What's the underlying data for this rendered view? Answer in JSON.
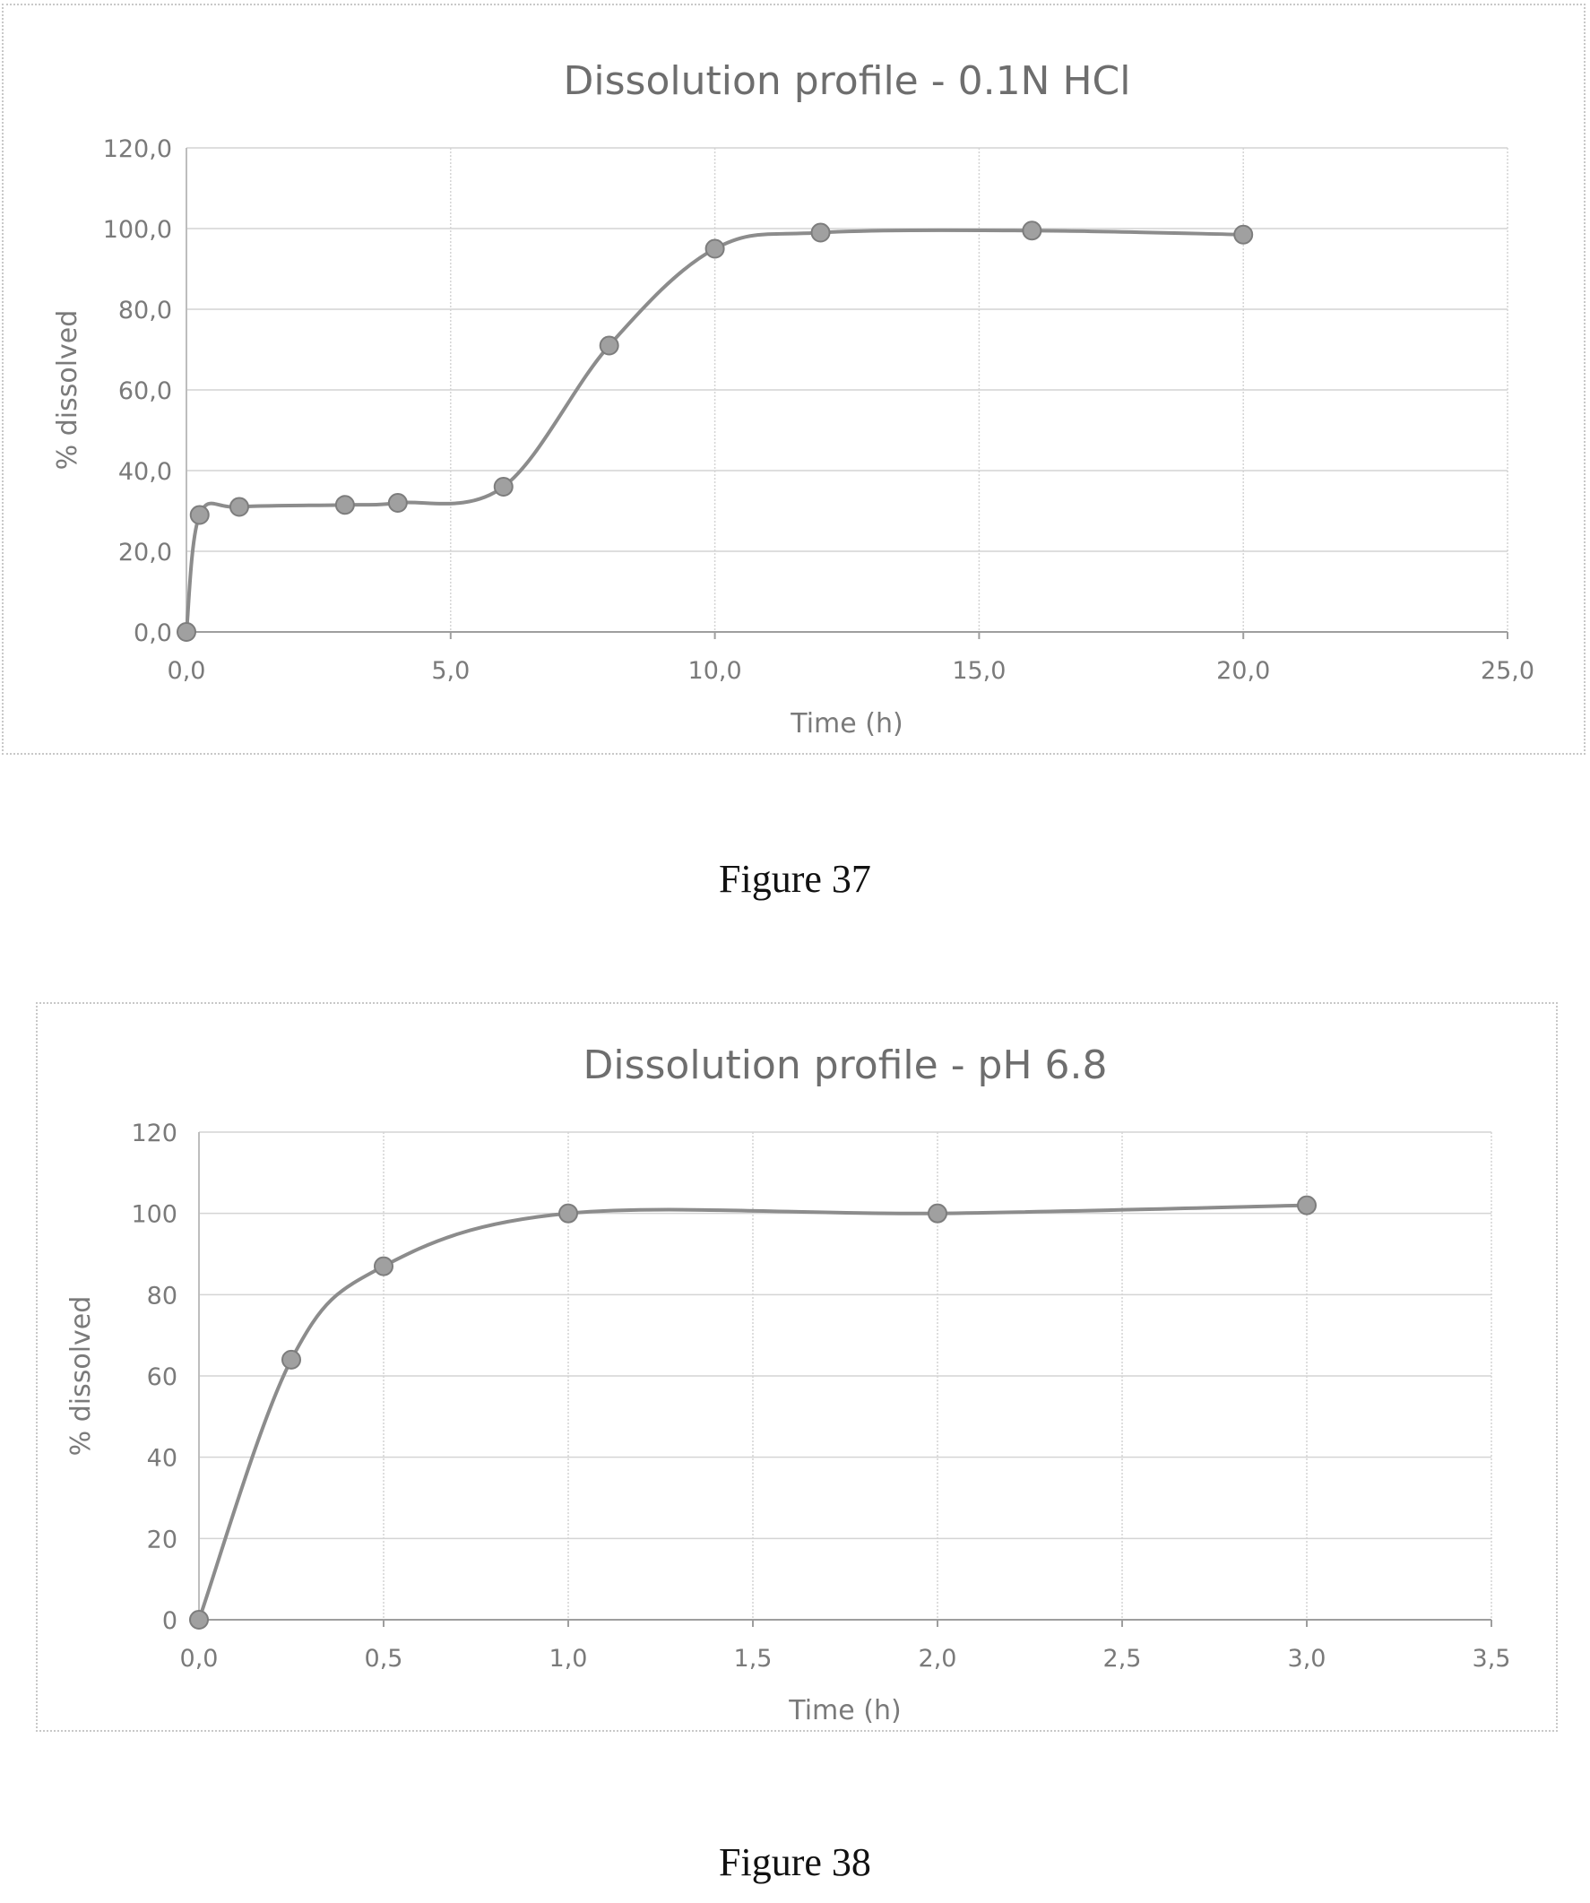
{
  "chart_data": [
    {
      "type": "line",
      "title": "Dissolution profile - 0.1N HCl",
      "xlabel": "Time (h)",
      "ylabel": "% dissolved",
      "xlim": [
        0,
        25
      ],
      "ylim": [
        0,
        120
      ],
      "xticks": [
        0,
        5,
        10,
        15,
        20,
        25
      ],
      "yticks": [
        0,
        20,
        40,
        60,
        80,
        100,
        120
      ],
      "xtick_labels": [
        "0,0",
        "5,0",
        "10,0",
        "15,0",
        "20,0",
        "25,0"
      ],
      "ytick_labels": [
        "0,0",
        "20,0",
        "40,0",
        "60,0",
        "80,0",
        "100,0",
        "120,0"
      ],
      "grid": true,
      "legend": "none",
      "smooth": true,
      "color": "#8c8c8c",
      "series": [
        {
          "x": [
            0,
            0.25,
            1,
            3,
            4,
            6,
            8,
            10,
            12,
            16,
            20
          ],
          "y": [
            0,
            29,
            31,
            31.5,
            32,
            36,
            71,
            95,
            99,
            99.5,
            98.5
          ]
        }
      ]
    },
    {
      "type": "line",
      "title": "Dissolution profile - pH 6.8",
      "xlabel": "Time (h)",
      "ylabel": "% dissolved",
      "xlim": [
        0,
        3.5
      ],
      "ylim": [
        0,
        120
      ],
      "xticks": [
        0,
        0.5,
        1,
        1.5,
        2,
        2.5,
        3,
        3.5
      ],
      "yticks": [
        0,
        20,
        40,
        60,
        80,
        100,
        120
      ],
      "xtick_labels": [
        "0,0",
        "0,5",
        "1,0",
        "1,5",
        "2,0",
        "2,5",
        "3,0",
        "3,5"
      ],
      "ytick_labels": [
        "0",
        "20",
        "40",
        "60",
        "80",
        "100",
        "120"
      ],
      "grid": true,
      "legend": "none",
      "smooth": true,
      "color": "#8c8c8c",
      "series": [
        {
          "x": [
            0,
            0.25,
            0.5,
            1,
            2,
            3
          ],
          "y": [
            0,
            64,
            87,
            100,
            100,
            102
          ]
        }
      ]
    }
  ],
  "captions": {
    "figure1": "Figure 37",
    "figure2": "Figure 38"
  }
}
